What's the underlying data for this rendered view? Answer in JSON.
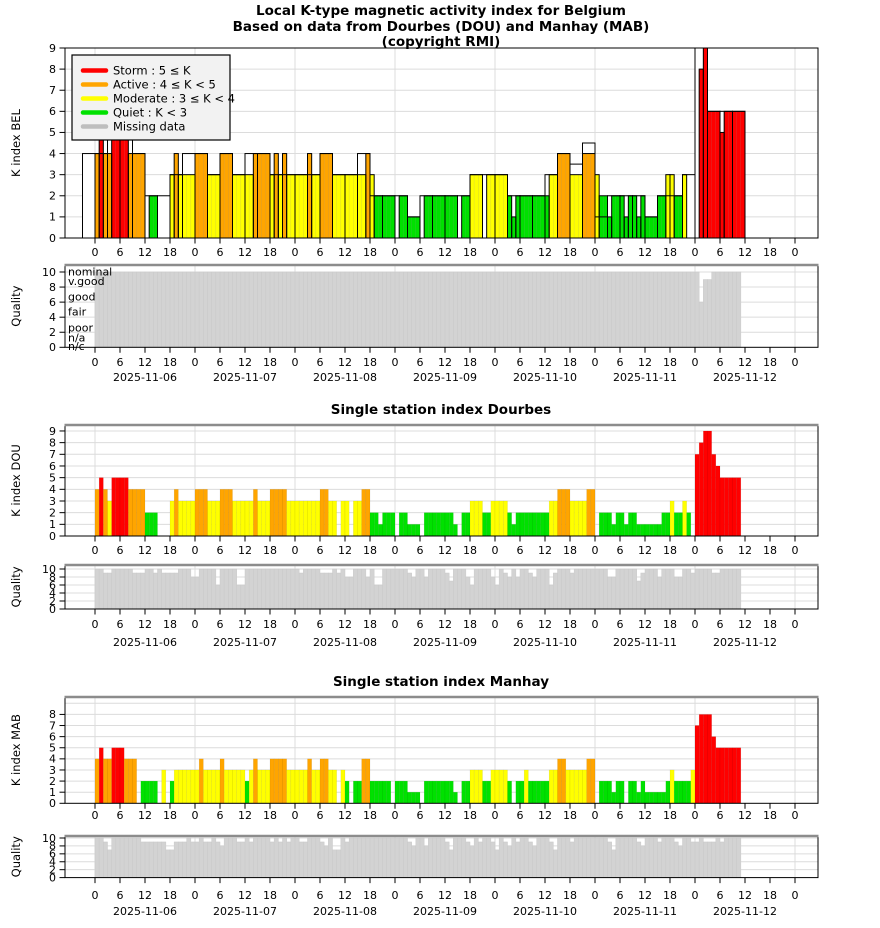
{
  "titles": {
    "line1": "Local K-type magnetic activity index for Belgium",
    "line2": "Based on data from Dourbes (DOU) and Manhay (MAB)",
    "line3": "(copyright RMI)",
    "dourbes": "Single station index Dourbes",
    "manhay": "Single station index Manhay"
  },
  "ylabels": {
    "bel": "K index BEL",
    "dou": "K index DOU",
    "mab": "K index MAB",
    "quality": "Quality"
  },
  "legend": {
    "items": [
      {
        "label": "Storm : 5 ≤ K",
        "color": "#FF0000"
      },
      {
        "label": "Active : 4 ≤ K < 5",
        "color": "#FFA500"
      },
      {
        "label": "Moderate : 3 ≤ K < 4",
        "color": "#FFFF00"
      },
      {
        "label": "Quiet : K < 3",
        "color": "#00E100"
      },
      {
        "label": "Missing data",
        "color": "#BEBEBE"
      }
    ]
  },
  "colors": {
    "storm": "#FF0000",
    "active": "#FFA500",
    "moderate": "#FFFF00",
    "quiet": "#00E100",
    "missing": "#BEBEBE",
    "quality_bar": "#D3D3D3",
    "grid": "#DCDCDC",
    "panel_top": "#8C8C8C"
  },
  "x_axis": {
    "hour_cycle": [
      "0",
      "6",
      "12",
      "18"
    ],
    "n_days": 7,
    "dates": [
      "2025-11-06",
      "2025-11-07",
      "2025-11-08",
      "2025-11-09",
      "2025-11-10",
      "2025-11-11",
      "2025-11-12"
    ]
  },
  "quality_levels": [
    {
      "label": "nominal",
      "value": 10.05
    },
    {
      "label": "v.good",
      "value": 8.8
    },
    {
      "label": "good",
      "value": 6.7
    },
    {
      "label": "fair",
      "value": 4.7
    },
    {
      "label": "poor",
      "value": 2.6
    },
    {
      "label": "n/a",
      "value": 1.3
    },
    {
      "label": "n/c",
      "value": 0.15
    }
  ],
  "chart_data": [
    {
      "type": "bar",
      "id": "bel",
      "ylabel": "K index BEL",
      "ylim": [
        0,
        9
      ],
      "yticks": [
        0,
        1,
        2,
        3,
        4,
        5,
        6,
        7,
        8,
        9
      ],
      "start": "2025-11-05 21:00",
      "bin_hours": 3,
      "slots": [
        [
          4,
          null,
          null,
          null
        ],
        [
          4,
          4,
          5,
          4
        ],
        [
          5,
          4,
          5,
          5
        ],
        [
          5,
          5,
          5,
          4
        ],
        [
          4,
          4,
          4,
          4
        ],
        [
          2,
          null,
          2,
          2
        ],
        [
          2,
          null,
          null,
          null
        ],
        [
          3,
          3,
          4,
          3
        ],
        [
          4,
          3,
          3,
          3
        ],
        [
          4,
          4,
          4,
          4
        ],
        [
          3,
          3,
          3,
          3
        ],
        [
          4,
          4,
          4,
          4
        ],
        [
          3,
          3,
          3,
          3
        ],
        [
          4,
          3,
          3,
          4
        ],
        [
          4,
          4,
          4,
          4
        ],
        [
          3,
          3,
          4,
          3
        ],
        [
          3,
          4,
          3,
          3
        ],
        [
          3,
          3,
          3,
          3
        ],
        [
          3,
          4,
          3,
          3
        ],
        [
          4,
          4,
          4,
          4
        ],
        [
          3,
          3,
          3,
          3
        ],
        [
          3,
          3,
          3,
          3
        ],
        [
          4,
          3,
          3,
          4
        ],
        [
          2,
          3,
          2,
          2
        ],
        [
          2,
          2,
          2,
          2
        ],
        [
          2,
          null,
          2,
          2
        ],
        [
          1,
          1,
          1,
          1
        ],
        [
          2,
          null,
          2,
          2
        ],
        [
          2,
          2,
          2,
          2
        ],
        [
          2,
          2,
          2,
          2
        ],
        [
          2,
          null,
          2,
          2
        ],
        [
          3,
          3,
          3,
          3
        ],
        [
          3,
          null,
          3,
          3
        ],
        [
          3,
          3,
          3,
          3
        ],
        [
          2,
          2,
          1,
          2
        ],
        [
          2,
          2,
          2,
          2
        ],
        [
          2,
          2,
          2,
          2
        ],
        [
          3,
          2,
          3,
          3
        ],
        [
          4,
          4,
          4,
          4
        ],
        [
          3.5,
          3,
          3,
          3
        ],
        [
          4.5,
          4,
          4,
          4
        ],
        [
          1,
          3,
          2,
          2
        ],
        [
          2,
          1,
          2,
          2
        ],
        [
          2,
          2,
          1,
          2
        ],
        [
          2,
          2,
          1,
          2
        ],
        [
          1,
          1,
          1,
          1
        ],
        [
          2,
          2,
          2,
          3
        ],
        [
          2,
          3,
          2,
          2
        ],
        [
          3,
          3,
          null,
          null
        ],
        [
          9,
          null,
          8,
          9
        ],
        [
          6,
          6,
          6,
          6
        ],
        [
          6,
          5,
          6,
          6
        ],
        [
          6,
          6,
          6,
          6
        ]
      ]
    },
    {
      "type": "bar",
      "id": "q1",
      "ylabel": "Quality",
      "ylim": [
        0,
        10
      ],
      "yticks": [
        0,
        2,
        4,
        6,
        8,
        10
      ],
      "hours_default": 10,
      "hours_first": 3,
      "hours_last": 157,
      "hours_overrides": {
        "148": 6,
        "149": 9,
        "150": 9
      }
    },
    {
      "type": "bar",
      "id": "dou",
      "title": "Single station index Dourbes",
      "ylabel": "K index DOU",
      "ylim": [
        0,
        9
      ],
      "yticks": [
        0,
        1,
        2,
        3,
        4,
        5,
        6,
        7,
        8,
        9
      ],
      "start": "2025-11-05 21:00",
      "bin_hours": 3,
      "slots": [
        [
          null,
          null,
          null
        ],
        [
          4,
          5,
          4
        ],
        [
          3,
          5,
          5
        ],
        [
          5,
          5,
          4
        ],
        [
          4,
          4,
          4
        ],
        [
          2,
          2,
          2
        ],
        [
          null,
          null,
          null
        ],
        [
          3,
          4,
          3
        ],
        [
          3,
          3,
          3
        ],
        [
          4,
          4,
          4
        ],
        [
          3,
          3,
          3
        ],
        [
          4,
          4,
          4
        ],
        [
          3,
          3,
          3
        ],
        [
          3,
          3,
          4
        ],
        [
          3,
          3,
          3
        ],
        [
          4,
          4,
          4
        ],
        [
          4,
          3,
          3
        ],
        [
          3,
          3,
          3
        ],
        [
          3,
          3,
          3
        ],
        [
          4,
          4,
          3
        ],
        [
          3,
          null,
          3
        ],
        [
          3,
          null,
          3
        ],
        [
          3,
          4,
          4
        ],
        [
          2,
          2,
          1
        ],
        [
          2,
          2,
          2
        ],
        [
          null,
          2,
          2
        ],
        [
          1,
          1,
          1
        ],
        [
          null,
          2,
          2
        ],
        [
          2,
          2,
          2
        ],
        [
          2,
          2,
          1
        ],
        [
          null,
          2,
          2
        ],
        [
          3,
          3,
          3
        ],
        [
          2,
          2,
          3
        ],
        [
          3,
          3,
          3
        ],
        [
          2,
          1,
          2
        ],
        [
          2,
          2,
          2
        ],
        [
          2,
          2,
          2
        ],
        [
          2,
          3,
          3
        ],
        [
          4,
          4,
          4
        ],
        [
          3,
          3,
          3
        ],
        [
          3,
          4,
          4
        ],
        [
          null,
          2,
          2
        ],
        [
          2,
          1,
          2
        ],
        [
          2,
          1,
          2
        ],
        [
          2,
          1,
          1
        ],
        [
          1,
          1,
          1
        ],
        [
          1,
          2,
          2
        ],
        [
          3,
          2,
          2
        ],
        [
          3,
          2,
          null
        ],
        [
          7,
          8,
          9
        ],
        [
          9,
          7,
          6
        ],
        [
          5,
          5,
          5
        ],
        [
          5,
          5,
          null
        ]
      ]
    },
    {
      "type": "bar",
      "id": "q2",
      "ylabel": "Quality",
      "ylim": [
        0,
        10
      ],
      "yticks": [
        0,
        2,
        4,
        6,
        8,
        10
      ],
      "hours_default": 10,
      "hours_first": 3,
      "hours_last": 157,
      "hours_overrides": {
        "5": 9,
        "6": 9,
        "12": 9,
        "13": 9,
        "14": 9,
        "17": 9,
        "19": 9,
        "20": 9,
        "21": 9,
        "22": 9,
        "26": 8,
        "27": 8,
        "32": 6,
        "37": 6,
        "38": 6,
        "52": 9,
        "57": 9,
        "58": 9,
        "59": 9,
        "61": 9,
        "63": 8,
        "64": 8,
        "68": 8,
        "70": 6,
        "71": 6,
        "78": 9,
        "79": 8,
        "82": 8,
        "87": 9,
        "88": 7,
        "92": 8,
        "93": 6,
        "98": 8,
        "99": 6,
        "101": 9,
        "102": 8,
        "104": 8,
        "107": 9,
        "108": 8,
        "112": 6,
        "113": 9,
        "117": 9,
        "126": 8,
        "127": 8,
        "133": 7,
        "134": 9,
        "138": 8,
        "142": 8,
        "143": 8,
        "146": 9,
        "151": 9,
        "152": 9
      }
    },
    {
      "type": "bar",
      "id": "mab",
      "title": "Single station index Manhay",
      "ylabel": "K index MAB",
      "ylim": [
        0,
        9
      ],
      "yticks": [
        0,
        1,
        2,
        3,
        4,
        5,
        6,
        7,
        8
      ],
      "start": "2025-11-05 21:00",
      "bin_hours": 3,
      "slots": [
        [
          null,
          null,
          null
        ],
        [
          4,
          5,
          4
        ],
        [
          4,
          5,
          5
        ],
        [
          5,
          4,
          4
        ],
        [
          4,
          null,
          2
        ],
        [
          2,
          2,
          2
        ],
        [
          null,
          3,
          null
        ],
        [
          2,
          3,
          3
        ],
        [
          3,
          3,
          3
        ],
        [
          3,
          4,
          3
        ],
        [
          3,
          3,
          3
        ],
        [
          4,
          3,
          3
        ],
        [
          3,
          3,
          3
        ],
        [
          2,
          3,
          4
        ],
        [
          3,
          3,
          3
        ],
        [
          4,
          4,
          4
        ],
        [
          4,
          3,
          3
        ],
        [
          3,
          3,
          3
        ],
        [
          4,
          3,
          3
        ],
        [
          4,
          4,
          3
        ],
        [
          3,
          null,
          3
        ],
        [
          2,
          null,
          2
        ],
        [
          2,
          4,
          4
        ],
        [
          2,
          2,
          2
        ],
        [
          2,
          2,
          null
        ],
        [
          2,
          2,
          2
        ],
        [
          1,
          1,
          1
        ],
        [
          null,
          2,
          2
        ],
        [
          2,
          2,
          2
        ],
        [
          2,
          2,
          1
        ],
        [
          null,
          2,
          2
        ],
        [
          3,
          3,
          3
        ],
        [
          2,
          2,
          3
        ],
        [
          3,
          3,
          3
        ],
        [
          2,
          null,
          2
        ],
        [
          2,
          3,
          2
        ],
        [
          2,
          2,
          2
        ],
        [
          2,
          3,
          3
        ],
        [
          4,
          4,
          3
        ],
        [
          3,
          3,
          3
        ],
        [
          3,
          4,
          4
        ],
        [
          null,
          2,
          2
        ],
        [
          2,
          1,
          2
        ],
        [
          2,
          null,
          2
        ],
        [
          2,
          1,
          2
        ],
        [
          1,
          1,
          1
        ],
        [
          1,
          1,
          2
        ],
        [
          3,
          2,
          2
        ],
        [
          2,
          2,
          3
        ],
        [
          7,
          8,
          8
        ],
        [
          8,
          6,
          5
        ],
        [
          5,
          5,
          5
        ],
        [
          5,
          5,
          null
        ]
      ]
    },
    {
      "type": "bar",
      "id": "q3",
      "ylabel": "Quality",
      "ylim": [
        0,
        10
      ],
      "yticks": [
        0,
        2,
        4,
        6,
        8,
        10
      ],
      "hours_default": 10,
      "hours_first": 3,
      "hours_last": 157,
      "hours_overrides": {
        "5": 9,
        "6": 7,
        "14": 9,
        "15": 9,
        "16": 9,
        "17": 9,
        "18": 9,
        "19": 9,
        "20": 7,
        "21": 7,
        "22": 9,
        "23": 9,
        "24": 9,
        "26": 9,
        "27": 9,
        "29": 9,
        "30": 9,
        "32": 9,
        "33": 8,
        "37": 9,
        "38": 9,
        "40": 9,
        "45": 9,
        "47": 9,
        "49": 9,
        "52": 9,
        "53": 9,
        "57": 9,
        "58": 8,
        "60": 7,
        "61": 7,
        "63": 9,
        "78": 9,
        "79": 8,
        "82": 8,
        "87": 9,
        "88": 7,
        "92": 9,
        "93": 8,
        "95": 9,
        "98": 9,
        "99": 7,
        "101": 9,
        "102": 8,
        "104": 9,
        "107": 9,
        "108": 8,
        "112": 9,
        "113": 7,
        "117": 9,
        "126": 9,
        "127": 7,
        "133": 9,
        "134": 8,
        "138": 9,
        "142": 9,
        "143": 8,
        "146": 9,
        "147": 9,
        "149": 9,
        "150": 9,
        "151": 9,
        "153": 9
      }
    }
  ]
}
